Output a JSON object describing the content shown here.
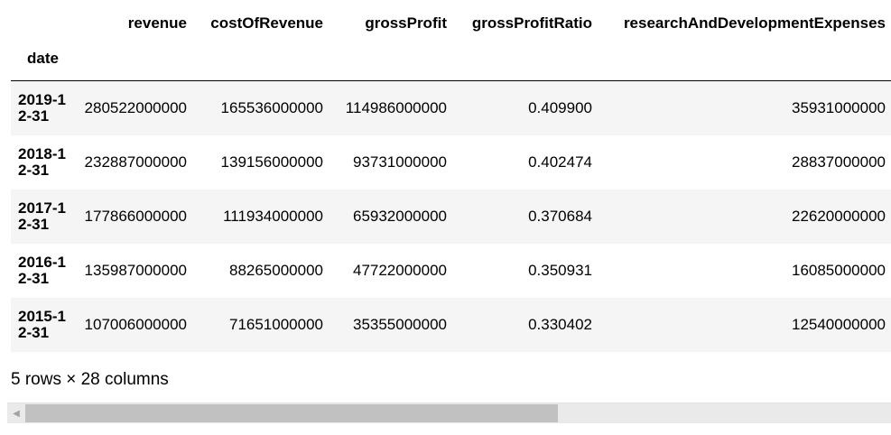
{
  "table": {
    "columns": [
      "revenue",
      "costOfRevenue",
      "grossProfit",
      "grossProfitRatio",
      "researchAndDevelopmentExpenses"
    ],
    "index_name": "date",
    "rows": [
      {
        "date": "2019-12-31",
        "cells": [
          "280522000000",
          "165536000000",
          "114986000000",
          "0.409900",
          "35931000000"
        ]
      },
      {
        "date": "2018-12-31",
        "cells": [
          "232887000000",
          "139156000000",
          "93731000000",
          "0.402474",
          "28837000000"
        ]
      },
      {
        "date": "2017-12-31",
        "cells": [
          "177866000000",
          "111934000000",
          "65932000000",
          "0.370684",
          "22620000000"
        ]
      },
      {
        "date": "2016-12-31",
        "cells": [
          "135987000000",
          "88265000000",
          "47722000000",
          "0.350931",
          "16085000000"
        ]
      },
      {
        "date": "2015-12-31",
        "cells": [
          "107006000000",
          "71651000000",
          "35355000000",
          "0.330402",
          "12540000000"
        ]
      }
    ]
  },
  "footer": {
    "shape_text": "5 rows × 28 columns"
  },
  "scrollbar": {
    "left_arrow_icon": "triangle-left-icon",
    "thumb_fraction": 0.6
  }
}
